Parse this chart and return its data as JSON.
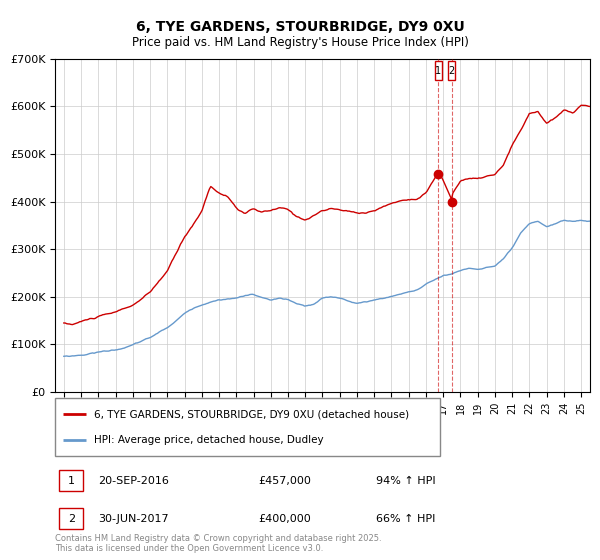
{
  "title1": "6, TYE GARDENS, STOURBRIDGE, DY9 0XU",
  "title2": "Price paid vs. HM Land Registry's House Price Index (HPI)",
  "legend1": "6, TYE GARDENS, STOURBRIDGE, DY9 0XU (detached house)",
  "legend2": "HPI: Average price, detached house, Dudley",
  "red_color": "#cc0000",
  "blue_color": "#6699cc",
  "transaction1_date": "20-SEP-2016",
  "transaction1_price": 457000,
  "transaction1_hpi": "94% ↑ HPI",
  "transaction2_date": "30-JUN-2017",
  "transaction2_price": 400000,
  "transaction2_hpi": "66% ↑ HPI",
  "vline1_x": 2016.72,
  "vline2_x": 2017.49,
  "ylim_min": 0,
  "ylim_max": 700000,
  "xlim_min": 1994.5,
  "xlim_max": 2025.5,
  "footer": "Contains HM Land Registry data © Crown copyright and database right 2025.\nThis data is licensed under the Open Government Licence v3.0.",
  "red_keypoints": [
    [
      1995.0,
      145000
    ],
    [
      1995.5,
      142000
    ],
    [
      1996.0,
      148000
    ],
    [
      1997.0,
      158000
    ],
    [
      1998.0,
      165000
    ],
    [
      1999.0,
      180000
    ],
    [
      2000.0,
      205000
    ],
    [
      2001.0,
      250000
    ],
    [
      2002.0,
      320000
    ],
    [
      2003.0,
      375000
    ],
    [
      2003.5,
      430000
    ],
    [
      2004.0,
      415000
    ],
    [
      2004.5,
      407000
    ],
    [
      2005.0,
      385000
    ],
    [
      2005.5,
      370000
    ],
    [
      2006.0,
      380000
    ],
    [
      2006.5,
      372000
    ],
    [
      2007.0,
      375000
    ],
    [
      2007.5,
      380000
    ],
    [
      2008.0,
      375000
    ],
    [
      2008.5,
      360000
    ],
    [
      2009.0,
      355000
    ],
    [
      2009.5,
      365000
    ],
    [
      2010.0,
      375000
    ],
    [
      2010.5,
      378000
    ],
    [
      2011.0,
      375000
    ],
    [
      2011.5,
      372000
    ],
    [
      2012.0,
      368000
    ],
    [
      2012.5,
      370000
    ],
    [
      2013.0,
      375000
    ],
    [
      2013.5,
      382000
    ],
    [
      2014.0,
      390000
    ],
    [
      2014.5,
      395000
    ],
    [
      2015.0,
      398000
    ],
    [
      2015.5,
      402000
    ],
    [
      2016.0,
      415000
    ],
    [
      2016.72,
      457000
    ],
    [
      2017.0,
      440000
    ],
    [
      2017.49,
      400000
    ],
    [
      2017.5,
      410000
    ],
    [
      2018.0,
      440000
    ],
    [
      2018.5,
      445000
    ],
    [
      2019.0,
      442000
    ],
    [
      2019.5,
      448000
    ],
    [
      2020.0,
      450000
    ],
    [
      2020.5,
      470000
    ],
    [
      2021.0,
      510000
    ],
    [
      2021.5,
      540000
    ],
    [
      2022.0,
      575000
    ],
    [
      2022.5,
      580000
    ],
    [
      2023.0,
      555000
    ],
    [
      2023.5,
      565000
    ],
    [
      2024.0,
      580000
    ],
    [
      2024.5,
      575000
    ],
    [
      2025.0,
      590000
    ],
    [
      2025.5,
      588000
    ]
  ],
  "blue_keypoints": [
    [
      1995.0,
      75000
    ],
    [
      1996.0,
      78000
    ],
    [
      1997.0,
      85000
    ],
    [
      1998.0,
      90000
    ],
    [
      1999.0,
      100000
    ],
    [
      2000.0,
      115000
    ],
    [
      2001.0,
      135000
    ],
    [
      2002.0,
      165000
    ],
    [
      2003.0,
      185000
    ],
    [
      2004.0,
      197000
    ],
    [
      2005.0,
      200000
    ],
    [
      2005.5,
      205000
    ],
    [
      2006.0,
      208000
    ],
    [
      2006.5,
      200000
    ],
    [
      2007.0,
      195000
    ],
    [
      2007.5,
      198000
    ],
    [
      2008.0,
      195000
    ],
    [
      2008.5,
      185000
    ],
    [
      2009.0,
      180000
    ],
    [
      2009.5,
      183000
    ],
    [
      2010.0,
      195000
    ],
    [
      2010.5,
      197000
    ],
    [
      2011.0,
      195000
    ],
    [
      2011.5,
      190000
    ],
    [
      2012.0,
      185000
    ],
    [
      2012.5,
      187000
    ],
    [
      2013.0,
      192000
    ],
    [
      2013.5,
      195000
    ],
    [
      2014.0,
      200000
    ],
    [
      2014.5,
      205000
    ],
    [
      2015.0,
      210000
    ],
    [
      2015.5,
      215000
    ],
    [
      2016.0,
      225000
    ],
    [
      2016.5,
      235000
    ],
    [
      2017.0,
      245000
    ],
    [
      2017.5,
      248000
    ],
    [
      2018.0,
      255000
    ],
    [
      2018.5,
      260000
    ],
    [
      2019.0,
      258000
    ],
    [
      2019.5,
      262000
    ],
    [
      2020.0,
      265000
    ],
    [
      2020.5,
      278000
    ],
    [
      2021.0,
      300000
    ],
    [
      2021.5,
      330000
    ],
    [
      2022.0,
      348000
    ],
    [
      2022.5,
      352000
    ],
    [
      2023.0,
      342000
    ],
    [
      2023.5,
      348000
    ],
    [
      2024.0,
      355000
    ],
    [
      2024.5,
      352000
    ],
    [
      2025.0,
      355000
    ],
    [
      2025.5,
      353000
    ]
  ]
}
